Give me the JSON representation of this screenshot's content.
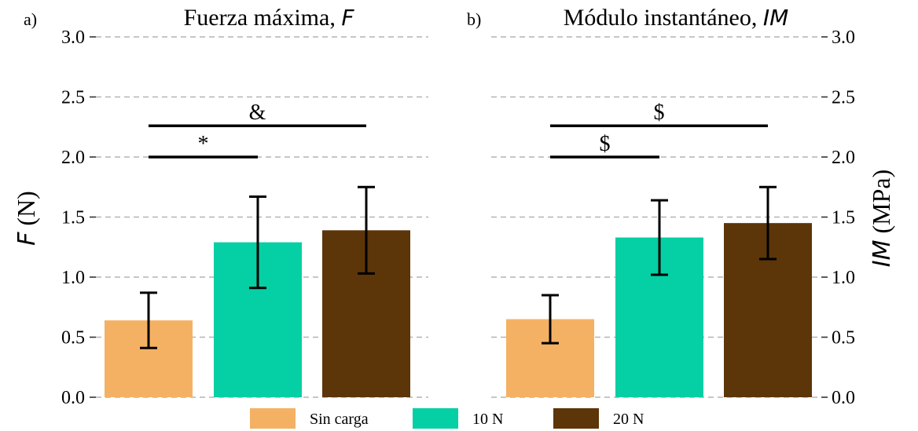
{
  "chart_data": [
    {
      "type": "bar",
      "panel_tag": "a)",
      "title": "Fuerza máxima, ",
      "title_symbol": "F",
      "ylabel_symbol": "F",
      "ylabel_unit": " (N)",
      "y_axis_side": "left",
      "ylim": [
        0,
        3.0
      ],
      "yticks": [
        "0.0",
        "0.5",
        "1.0",
        "1.5",
        "2.0",
        "2.5",
        "3.0"
      ],
      "grid": "horizontal-dashed",
      "categories": [
        "Sin carga",
        "10 N",
        "20 N"
      ],
      "values": [
        0.64,
        1.29,
        1.39
      ],
      "errors": [
        0.23,
        0.38,
        0.36
      ],
      "significance": [
        {
          "from": 0,
          "to": 1,
          "y": 2.0,
          "label": "*"
        },
        {
          "from": 0,
          "to": 2,
          "y": 2.26,
          "label": "&"
        }
      ]
    },
    {
      "type": "bar",
      "panel_tag": "b)",
      "title": "Módulo instantáneo, ",
      "title_symbol": "IM",
      "ylabel_symbol": "IM",
      "ylabel_unit": " (MPa)",
      "y_axis_side": "right",
      "ylim": [
        0,
        3.0
      ],
      "yticks": [
        "0.0",
        "0.5",
        "1.0",
        "1.5",
        "2.0",
        "2.5",
        "3.0"
      ],
      "grid": "horizontal-dashed",
      "categories": [
        "Sin carga",
        "10 N",
        "20 N"
      ],
      "values": [
        0.65,
        1.33,
        1.45
      ],
      "errors": [
        0.2,
        0.31,
        0.3
      ],
      "significance": [
        {
          "from": 0,
          "to": 1,
          "y": 2.0,
          "label": "$"
        },
        {
          "from": 0,
          "to": 2,
          "y": 2.26,
          "label": "$"
        }
      ]
    }
  ],
  "legend": {
    "placement": "bottom-center",
    "items": [
      {
        "label": "Sin carga",
        "color": "#F5B163"
      },
      {
        "label": "10 N",
        "color": "#05CFA4"
      },
      {
        "label": "20 N",
        "color": "#5C3509"
      }
    ]
  },
  "colors": {
    "bars": [
      "#F5B163",
      "#05CFA4",
      "#5C3509"
    ],
    "grid": "#b4b4b4",
    "text": "#000000"
  }
}
